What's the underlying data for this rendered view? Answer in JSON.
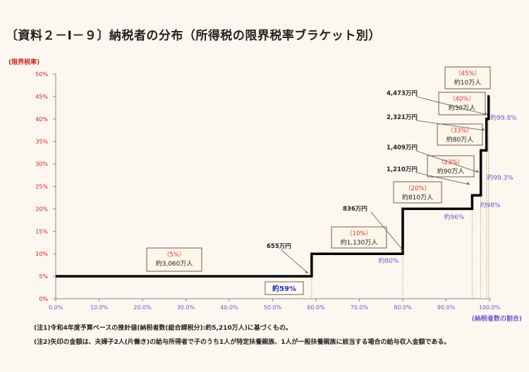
{
  "title": "〔資料２－Ⅰ－９〕納税者の分布（所得税の限界税率ブラケット別）",
  "notes": [
    "(注1)令和4年度予算ベースの推計値(納税者数(総合課税分):約5,210万人)に基づくもの。",
    "(注2)矢印の金額は、夫婦子2人(片働き)の給与所得者で子のうち1人が特定扶養親族、1人が一般扶養親族に該当する場合の給与収入金額である。"
  ],
  "chart_data": {
    "type": "line",
    "step": true,
    "ylabel": "(限界税率)",
    "xlabel": "(納税者数の割合)",
    "xlim": [
      0,
      100
    ],
    "ylim": [
      0,
      50
    ],
    "xticks": [
      "0.0%",
      "10.0%",
      "20.0%",
      "30.0%",
      "40.0%",
      "50.0%",
      "60.0%",
      "70.0%",
      "80.0%",
      "90.0%",
      "100.0%"
    ],
    "yticks": [
      "0%",
      "5%",
      "10%",
      "15%",
      "20%",
      "25%",
      "30%",
      "35%",
      "40%",
      "45%",
      "50%"
    ],
    "grid": false,
    "brackets": [
      {
        "rate": 5,
        "from": 0,
        "to": 59,
        "rate_label": "（5%）",
        "count_label": "約3,060万人"
      },
      {
        "rate": 10,
        "from": 59,
        "to": 80,
        "rate_label": "（10%）",
        "count_label": "約1,130万人",
        "income_label": "655万円",
        "share_label": "約59%"
      },
      {
        "rate": 20,
        "from": 80,
        "to": 96,
        "rate_label": "（20%）",
        "count_label": "約810万人",
        "income_label": "836万円",
        "share_label": "約80%"
      },
      {
        "rate": 23,
        "from": 96,
        "to": 98,
        "rate_label": "（23%）",
        "count_label": "約90万人",
        "income_label": "1,210万円",
        "share_label": "約96%"
      },
      {
        "rate": 33,
        "from": 98,
        "to": 99.3,
        "rate_label": "（33%）",
        "count_label": "約80万人",
        "income_label": "1,409万円",
        "share_label": "約98%"
      },
      {
        "rate": 40,
        "from": 99.3,
        "to": 99.8,
        "rate_label": "（40%）",
        "count_label": "約30万人",
        "income_label": "2,321万円",
        "share_label": "約99.3%"
      },
      {
        "rate": 45,
        "from": 99.8,
        "to": 100,
        "rate_label": "（45%）",
        "count_label": "約10万人",
        "income_label": "4,473万円",
        "share_label": "約99.8%"
      }
    ],
    "colors": {
      "line": "#000000",
      "rate": "#e03030",
      "share": "#6a5acd",
      "tick_x": "#6a5acd",
      "tick_y": "#d02020"
    }
  }
}
